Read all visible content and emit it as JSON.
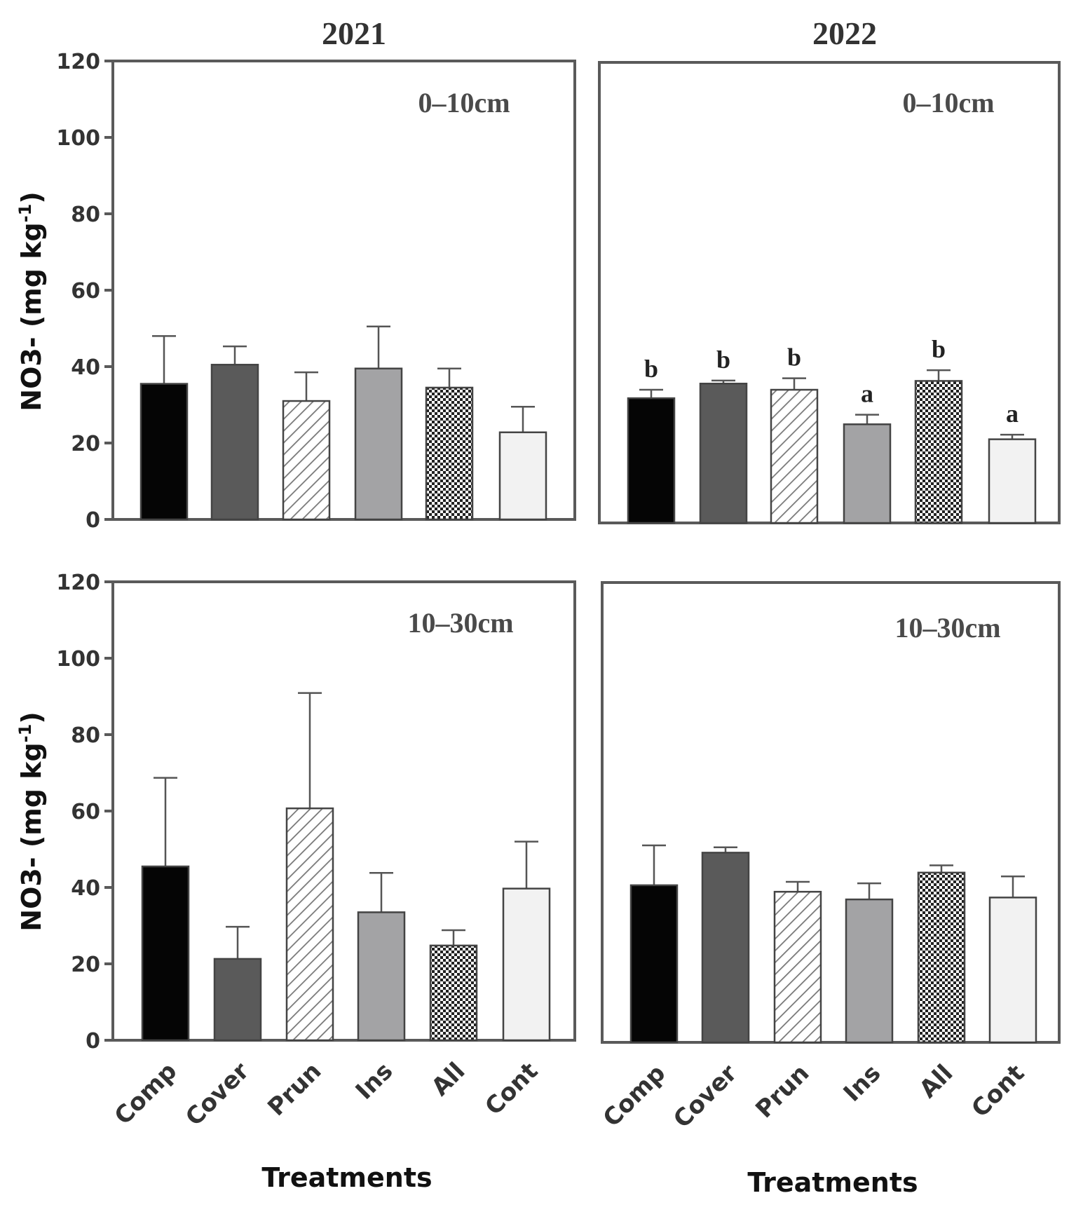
{
  "chart_data": [
    {
      "type": "bar",
      "year": "2021",
      "depth": "0–10cm",
      "categories": [
        "Comp",
        "Cover",
        "Prun",
        "Ins",
        "All",
        "Cont"
      ],
      "values": [
        35.5,
        40.5,
        31,
        39.5,
        34.5,
        22.8
      ],
      "errors": [
        12.5,
        4.8,
        7.5,
        11,
        5,
        6.7
      ],
      "sig_letters": [],
      "ylabel": "NO3- (mg kg-1)",
      "xlabel": "",
      "ylim": [
        0,
        120
      ],
      "yticks": [
        "0",
        "20",
        "40",
        "60",
        "80",
        "100",
        "120"
      ]
    },
    {
      "type": "bar",
      "year": "2022",
      "depth": "0–10cm",
      "categories": [
        "Comp",
        "Cover",
        "Prun",
        "Ins",
        "All",
        "Cont"
      ],
      "values": [
        32.5,
        36.3,
        34.7,
        25.7,
        37,
        21.8
      ],
      "errors": [
        2.2,
        0.8,
        3,
        2.5,
        2.8,
        1.2
      ],
      "sig_letters": [
        "b",
        "b",
        "b",
        "a",
        "b",
        "a"
      ],
      "ylabel": "",
      "xlabel": "",
      "ylim": [
        0,
        120
      ],
      "yticks": []
    },
    {
      "type": "bar",
      "year": "2021",
      "depth": "10–30cm",
      "categories": [
        "Comp",
        "Cover",
        "Prun",
        "Ins",
        "All",
        "Cont"
      ],
      "values": [
        45.5,
        21.3,
        60.7,
        33.5,
        24.8,
        39.7
      ],
      "errors": [
        23.2,
        8.4,
        30.2,
        10.3,
        4,
        12.3
      ],
      "sig_letters": [],
      "ylabel": "NO3- (mg kg-1)",
      "xlabel": "Treatments",
      "ylim": [
        0,
        120
      ],
      "yticks": [
        "0",
        "20",
        "40",
        "60",
        "80",
        "100",
        "120"
      ]
    },
    {
      "type": "bar",
      "year": "2022",
      "depth": "10–30cm",
      "categories": [
        "Comp",
        "Cover",
        "Prun",
        "Ins",
        "All",
        "Cont"
      ],
      "values": [
        41,
        49.5,
        39.3,
        37.3,
        44.3,
        37.8
      ],
      "errors": [
        10.4,
        1.4,
        2.6,
        4.2,
        1.9,
        5.5
      ],
      "sig_letters": [],
      "ylabel": "",
      "xlabel": "Treatments",
      "ylim": [
        0,
        120
      ],
      "yticks": []
    }
  ],
  "fills": [
    "#050505",
    "#5a5a5a",
    "hatch",
    "#a3a3a5",
    "checker",
    "#f2f2f2"
  ],
  "ylabel_main": "NO3- (mg kg",
  "ylabel_sup": "-1",
  "ylabel_close": ")"
}
